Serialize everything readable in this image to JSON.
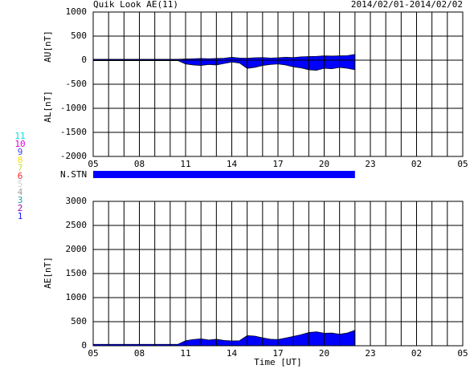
{
  "chart_data": [
    {
      "type": "area",
      "title": "Quik Look AE(11)",
      "subtitle": "2014/02/01-2014/02/02",
      "ylabels": [
        "AU[nT]",
        "AL[nT]"
      ],
      "x": [
        5,
        5.5,
        6,
        6.5,
        7,
        7.5,
        8,
        8.5,
        9,
        9.5,
        10,
        10.5,
        11,
        11.5,
        12,
        12.5,
        13,
        13.5,
        14,
        14.5,
        15,
        15.5,
        16,
        16.5,
        17,
        17.5,
        18,
        18.5,
        19,
        19.5,
        20,
        20.5,
        21,
        21.5,
        22
      ],
      "series": [
        {
          "color": "#0000ff",
          "values": [
            20,
            20,
            20,
            20,
            20,
            20,
            20,
            20,
            20,
            20,
            20,
            20,
            25,
            30,
            35,
            30,
            35,
            40,
            60,
            45,
            40,
            50,
            55,
            45,
            50,
            60,
            55,
            70,
            75,
            80,
            90,
            85,
            90,
            95,
            120
          ]
        },
        {
          "color": "#0000ff",
          "values": [
            -10,
            -10,
            -10,
            -10,
            -10,
            -10,
            -10,
            -10,
            -10,
            -10,
            -10,
            -10,
            -80,
            -100,
            -110,
            -90,
            -100,
            -70,
            -40,
            -60,
            -170,
            -150,
            -110,
            -90,
            -80,
            -100,
            -140,
            -160,
            -200,
            -210,
            -170,
            -180,
            -150,
            -170,
            -200
          ]
        }
      ],
      "xlim": [
        5,
        29
      ],
      "xticks": [
        {
          "value": 5,
          "label": "05"
        },
        {
          "value": 8,
          "label": "08"
        },
        11,
        14,
        17,
        20,
        23,
        {
          "value": 26,
          "label": "02"
        },
        {
          "value": 29,
          "label": "05"
        }
      ],
      "xminorticks": [
        6,
        7,
        9,
        10,
        12,
        13,
        15,
        16,
        18,
        19,
        21,
        22,
        24,
        25,
        27,
        28
      ],
      "ylim": [
        -2000,
        1000
      ],
      "yticks": [
        -2000,
        -1500,
        -1000,
        -500,
        0,
        500,
        1000
      ]
    },
    {
      "type": "band",
      "label": "N.STN",
      "xlim": [
        5,
        29
      ],
      "x": [
        5,
        22
      ],
      "color": "#0000ff",
      "stations": [
        {
          "label": "11",
          "color": "#00e0e0"
        },
        {
          "label": "10",
          "color": "#e000e0"
        },
        {
          "label": "9",
          "color": "#4040ff"
        },
        {
          "label": "8",
          "color": "#ffe000"
        },
        {
          "label": "7",
          "color": "#c0e040"
        },
        {
          "label": "6",
          "color": "#ff2020"
        },
        {
          "label": "5",
          "color": "#d0d0d0"
        },
        {
          "label": "4",
          "color": "#a0a0a0"
        },
        {
          "label": "3",
          "color": "#20a0a0"
        },
        {
          "label": "2",
          "color": "#a000c0"
        },
        {
          "label": "1",
          "color": "#2020ff"
        }
      ]
    },
    {
      "type": "area",
      "ylabels": [
        "AE[nT]"
      ],
      "xlabel": "Time [UT]",
      "x": [
        5,
        5.5,
        6,
        6.5,
        7,
        7.5,
        8,
        8.5,
        9,
        9.5,
        10,
        10.5,
        11,
        11.5,
        12,
        12.5,
        13,
        13.5,
        14,
        14.5,
        15,
        15.5,
        16,
        16.5,
        17,
        17.5,
        18,
        18.5,
        19,
        19.5,
        20,
        20.5,
        21,
        21.5,
        22
      ],
      "series": [
        {
          "color": "#0000ff",
          "values": [
            30,
            30,
            30,
            30,
            30,
            30,
            30,
            30,
            30,
            30,
            30,
            30,
            105,
            130,
            145,
            120,
            135,
            110,
            100,
            105,
            210,
            200,
            165,
            135,
            130,
            160,
            195,
            230,
            275,
            290,
            260,
            265,
            240,
            265,
            320
          ]
        }
      ],
      "xlim": [
        5,
        29
      ],
      "xticks": [
        {
          "value": 5,
          "label": "05"
        },
        {
          "value": 8,
          "label": "08"
        },
        11,
        14,
        17,
        20,
        23,
        {
          "value": 26,
          "label": "02"
        },
        {
          "value": 29,
          "label": "05"
        }
      ],
      "xminorticks": [
        6,
        7,
        9,
        10,
        12,
        13,
        15,
        16,
        18,
        19,
        21,
        22,
        24,
        25,
        27,
        28
      ],
      "ylim": [
        0,
        3000
      ],
      "yticks": [
        0,
        500,
        1000,
        1500,
        2000,
        2500,
        3000
      ]
    }
  ]
}
